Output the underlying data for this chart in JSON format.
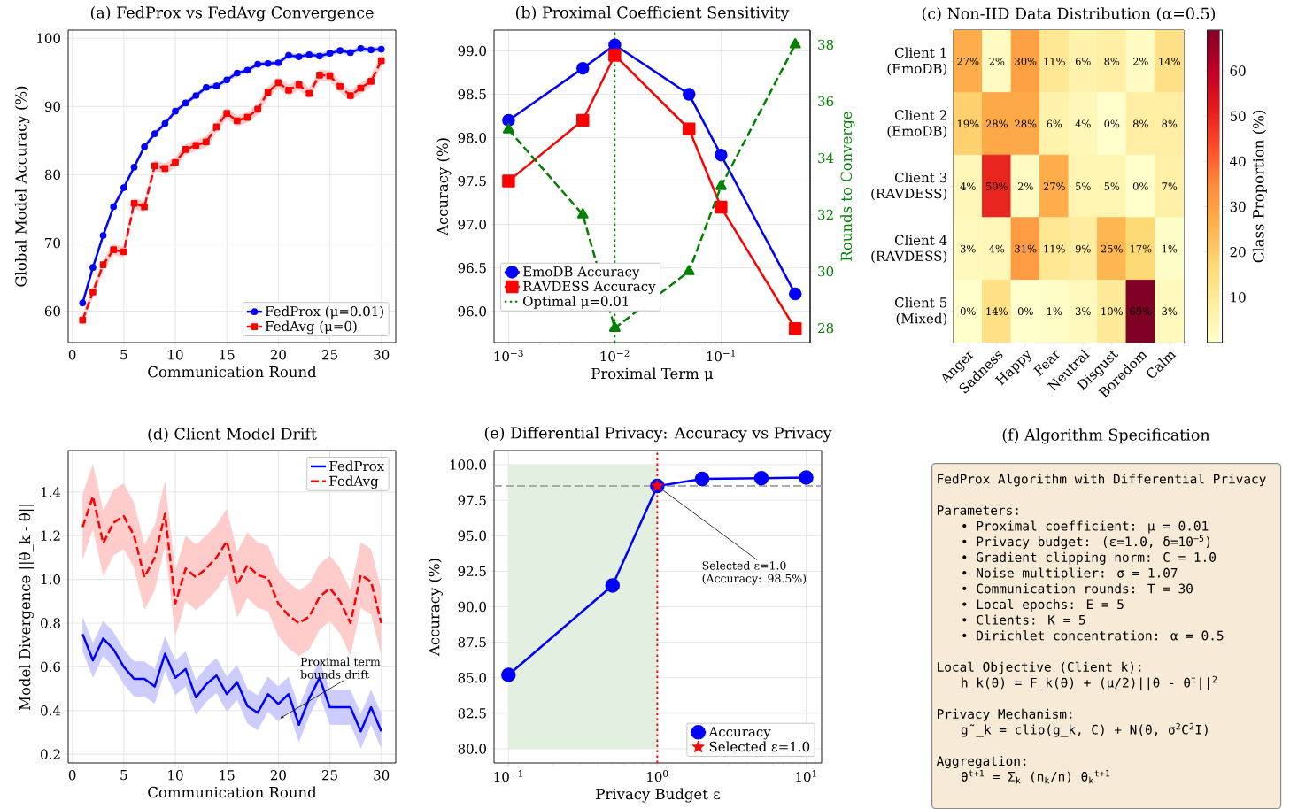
{
  "chart_data": [
    {
      "type": "line",
      "title": "(a) FedProx vs FedAvg Convergence",
      "xlabel": "Communication Round",
      "ylabel": "Global Model Accuracy (%)",
      "x": [
        1,
        2,
        3,
        4,
        5,
        6,
        7,
        8,
        9,
        10,
        11,
        12,
        13,
        14,
        15,
        16,
        17,
        18,
        19,
        20,
        21,
        22,
        23,
        24,
        25,
        26,
        27,
        28,
        29,
        30
      ],
      "xlim": [
        -0.4,
        31.4
      ],
      "ylim": [
        55.4,
        101.2
      ],
      "xticks": [
        0,
        5,
        10,
        15,
        20,
        25,
        30
      ],
      "yticks": [
        60,
        70,
        80,
        90,
        100
      ],
      "grid": true,
      "legend": "bottom right",
      "series": [
        {
          "name": "FedProx (μ=0.01)",
          "color": "#0000ff",
          "marker": "circle",
          "line_style": "solid",
          "values": [
            61.2,
            66.4,
            71.1,
            75.3,
            78.1,
            81.1,
            84.1,
            86.0,
            87.5,
            89.3,
            90.5,
            91.6,
            92.8,
            93.0,
            93.9,
            94.9,
            95.3,
            96.2,
            96.3,
            96.4,
            97.5,
            97.3,
            97.6,
            97.4,
            97.8,
            98.2,
            97.9,
            98.5,
            98.3,
            98.4
          ],
          "lower": [
            60.8,
            66.0,
            70.7,
            74.9,
            77.7,
            80.7,
            83.7,
            85.6,
            87.1,
            88.9,
            90.1,
            91.2,
            92.4,
            92.6,
            93.5,
            94.5,
            94.9,
            95.8,
            95.9,
            96.0,
            97.1,
            96.9,
            97.2,
            97.0,
            97.4,
            97.8,
            97.5,
            98.1,
            97.9,
            98.0
          ],
          "upper": [
            61.6,
            66.8,
            71.5,
            75.7,
            78.5,
            81.5,
            84.5,
            86.4,
            87.9,
            89.7,
            90.9,
            92.0,
            93.2,
            93.4,
            94.3,
            95.3,
            95.7,
            96.6,
            96.7,
            96.8,
            97.9,
            97.7,
            98.0,
            97.8,
            98.2,
            98.6,
            98.3,
            98.9,
            98.7,
            98.8
          ]
        },
        {
          "name": "FedAvg (μ=0)",
          "color": "#ff0000",
          "marker": "square",
          "line_style": "dashed",
          "values": [
            58.7,
            62.8,
            66.8,
            69.0,
            68.7,
            75.8,
            75.3,
            81.3,
            80.9,
            81.8,
            83.7,
            84.3,
            84.8,
            87.0,
            89.0,
            87.9,
            88.4,
            89.6,
            92.1,
            93.5,
            92.4,
            93.2,
            91.9,
            94.6,
            94.5,
            92.9,
            91.6,
            92.7,
            93.7,
            96.7
          ],
          "lower": [
            57.9,
            62.0,
            66.0,
            68.2,
            67.9,
            75.0,
            74.5,
            80.5,
            80.1,
            81.0,
            82.9,
            83.5,
            84.0,
            86.2,
            88.2,
            87.1,
            87.6,
            88.8,
            91.3,
            92.7,
            91.6,
            92.4,
            91.1,
            93.8,
            93.7,
            92.1,
            90.8,
            91.9,
            92.9,
            95.9
          ],
          "upper": [
            59.5,
            63.6,
            67.6,
            69.8,
            69.5,
            76.6,
            76.1,
            82.1,
            81.7,
            82.6,
            84.5,
            85.1,
            85.6,
            87.8,
            89.8,
            88.7,
            89.2,
            90.4,
            92.9,
            94.3,
            93.2,
            94.0,
            92.7,
            95.4,
            95.3,
            93.7,
            92.4,
            93.5,
            94.5,
            97.5
          ]
        }
      ]
    },
    {
      "type": "line",
      "title": "(b) Proximal Coefficient Sensitivity",
      "xlabel": "Proximal Term μ",
      "ylabel": "Accuracy (%)",
      "y2label": "Rounds to Converge",
      "log": "x",
      "x": [
        0.001,
        0.005,
        0.01,
        0.05,
        0.1,
        0.5
      ],
      "xlim": [
        0.00073,
        0.69
      ],
      "ylim": [
        95.64,
        99.24
      ],
      "y2lim": [
        27.49,
        38.51
      ],
      "xticks": [
        {
          "value": 0.001,
          "label": "10$^{−3}$"
        },
        {
          "value": 0.01,
          "label": "10$^{−2}$"
        },
        {
          "value": 0.1,
          "label": "10$^{−1}$"
        }
      ],
      "yticks": [
        {
          "value": 96,
          "label": "96.0"
        },
        96.5,
        {
          "value": 97,
          "label": "97.0"
        },
        97.5,
        {
          "value": 98,
          "label": "98.0"
        },
        98.5,
        {
          "value": 99,
          "label": "99.0"
        }
      ],
      "y2ticks": [
        28,
        30,
        32,
        34,
        36,
        38
      ],
      "grid": true,
      "legend": "bottom left",
      "ref_lines": [
        {
          "axis": "x",
          "value": 0.01,
          "label": "Optimal μ=0.01",
          "color": "#008000",
          "line_style": "dotted"
        }
      ],
      "series": [
        {
          "name": "EmoDB Accuracy",
          "color": "#0000ff",
          "marker": "circle",
          "line_style": "solid",
          "values": [
            98.2,
            98.8,
            99.07,
            98.5,
            97.8,
            96.2
          ]
        },
        {
          "name": "RAVDESS Accuracy",
          "color": "#ff0000",
          "marker": "square",
          "line_style": "solid",
          "values": [
            97.5,
            98.2,
            98.95,
            98.1,
            97.2,
            95.8
          ]
        },
        {
          "color": "#008000",
          "marker": "triangle",
          "line_style": "dashed",
          "axis": "y2",
          "values": [
            35,
            32,
            28,
            30,
            33,
            38
          ]
        }
      ]
    },
    {
      "type": "heatmap",
      "title": "(c) Non-IID Data Distribution (α=0.5)",
      "clabel": "Class Proportion (%)",
      "categories": [
        "Anger",
        "Sadness",
        "Happy",
        "Fear",
        "Neutral",
        "Disgust",
        "Boredom",
        "Calm"
      ],
      "y_categories": [
        "Client 1 (EmoDB)",
        "Client 2 (EmoDB)",
        "Client 3 (RAVDESS)",
        "Client 4 (RAVDESS)",
        "Client 5 (Mixed)"
      ],
      "clim": [
        0,
        69
      ],
      "cticks": [
        10,
        20,
        30,
        40,
        50,
        60
      ],
      "cells": [
        [
          27,
          2,
          30,
          11,
          6,
          8,
          2,
          14
        ],
        [
          19,
          28,
          28,
          6,
          4,
          0,
          8,
          8
        ],
        [
          4,
          50,
          2,
          27,
          5,
          5,
          0,
          7
        ],
        [
          3,
          4,
          31,
          11,
          9,
          25,
          17,
          1
        ],
        [
          0,
          14,
          0,
          1,
          3,
          10,
          69,
          3
        ]
      ],
      "cell_labels": [
        [
          "27%",
          "2%",
          "30%",
          "11%",
          "6%",
          "8%",
          "2%",
          "14%"
        ],
        [
          "19%",
          "28%",
          "28%",
          "6%",
          "4%",
          "0%",
          "8%",
          "8%"
        ],
        [
          "4%",
          "50%",
          "2%",
          "27%",
          "5%",
          "5%",
          "0%",
          "7%"
        ],
        [
          "3%",
          "4%",
          "31%",
          "11%",
          "9%",
          "25%",
          "17%",
          "1%"
        ],
        [
          "0%",
          "14%",
          "0%",
          "1%",
          "3%",
          "10%",
          "69%",
          "3%"
        ]
      ]
    },
    {
      "type": "line",
      "title": "(d) Client Model Drift",
      "xlabel": "Communication Round",
      "ylabel": "Model Divergence ||θ_k - θ||",
      "x": [
        1,
        2,
        3,
        4,
        5,
        6,
        7,
        8,
        9,
        10,
        11,
        12,
        13,
        14,
        15,
        16,
        17,
        18,
        19,
        20,
        21,
        22,
        23,
        24,
        25,
        26,
        27,
        28,
        29,
        30
      ],
      "xlim": [
        -0.4,
        31.4
      ],
      "ylim": [
        0.16,
        1.59
      ],
      "xticks": [
        0,
        5,
        10,
        15,
        20,
        25,
        30
      ],
      "yticks": [
        0.2,
        0.4,
        0.6,
        0.8,
        {
          "value": 1,
          "label": "1.0"
        },
        1.2,
        1.4
      ],
      "grid": true,
      "legend": "top right",
      "annotations": [
        {
          "text": "Proximal term bounds drift",
          "x": 20.2,
          "y": 0.365
        }
      ],
      "series": [
        {
          "name": "FedProx",
          "color": "#0000ff",
          "line_style": "solid",
          "values": [
            0.75,
            0.63,
            0.73,
            0.68,
            0.6,
            0.545,
            0.545,
            0.51,
            0.66,
            0.55,
            0.59,
            0.46,
            0.52,
            0.56,
            0.475,
            0.53,
            0.42,
            0.39,
            0.475,
            0.43,
            0.475,
            0.335,
            0.455,
            0.55,
            0.415,
            0.415,
            0.415,
            0.305,
            0.415,
            0.305
          ],
          "lower": [
            0.67,
            0.55,
            0.65,
            0.6,
            0.52,
            0.465,
            0.465,
            0.43,
            0.58,
            0.47,
            0.51,
            0.38,
            0.44,
            0.48,
            0.395,
            0.45,
            0.34,
            0.31,
            0.395,
            0.35,
            0.395,
            0.255,
            0.375,
            0.47,
            0.335,
            0.335,
            0.335,
            0.225,
            0.335,
            0.225
          ],
          "upper": [
            0.83,
            0.71,
            0.81,
            0.76,
            0.68,
            0.625,
            0.625,
            0.59,
            0.74,
            0.63,
            0.67,
            0.54,
            0.6,
            0.64,
            0.555,
            0.61,
            0.5,
            0.47,
            0.555,
            0.51,
            0.555,
            0.415,
            0.535,
            0.63,
            0.495,
            0.495,
            0.495,
            0.385,
            0.495,
            0.385
          ]
        },
        {
          "name": "FedAvg",
          "color": "#ff0000",
          "line_style": "dashed",
          "values": [
            1.24,
            1.38,
            1.165,
            1.26,
            1.29,
            1.2,
            1.01,
            1.1,
            1.3,
            0.89,
            1.05,
            1.01,
            1.05,
            1.1,
            1.175,
            0.975,
            1.065,
            1.02,
            1.005,
            0.89,
            0.835,
            0.8,
            0.83,
            0.92,
            0.96,
            0.9,
            0.8,
            1.02,
            0.99,
            0.8
          ],
          "lower": [
            1.09,
            1.23,
            1.015,
            1.11,
            1.14,
            1.05,
            0.86,
            0.95,
            1.15,
            0.74,
            0.9,
            0.86,
            0.9,
            0.95,
            1.025,
            0.825,
            0.915,
            0.87,
            0.855,
            0.74,
            0.685,
            0.65,
            0.68,
            0.77,
            0.81,
            0.75,
            0.65,
            0.87,
            0.84,
            0.65
          ],
          "upper": [
            1.39,
            1.53,
            1.315,
            1.41,
            1.44,
            1.35,
            1.16,
            1.25,
            1.45,
            1.04,
            1.2,
            1.16,
            1.2,
            1.25,
            1.325,
            1.125,
            1.215,
            1.17,
            1.155,
            1.04,
            0.985,
            0.95,
            0.98,
            1.07,
            1.11,
            1.05,
            0.95,
            1.17,
            1.14,
            0.95
          ]
        }
      ]
    },
    {
      "type": "line",
      "title": "(e) Differential Privacy: Accuracy vs Privacy",
      "xlabel": "Privacy Budget ε",
      "ylabel": "Accuracy (%)",
      "log": "x",
      "xlim": [
        0.08,
        12.7
      ],
      "ylim": [
        79.0,
        101.0
      ],
      "xticks": [
        {
          "value": 0.1,
          "label": "10$^{−1}$"
        },
        {
          "value": 1,
          "label": "10$^{0}$"
        },
        {
          "value": 10,
          "label": "10$^{1}$"
        }
      ],
      "yticks": [
        {
          "value": 80,
          "label": "80.0"
        },
        82.5,
        {
          "value": 85,
          "label": "85.0"
        },
        87.5,
        {
          "value": 90,
          "label": "90.0"
        },
        92.5,
        {
          "value": 95,
          "label": "95.0"
        },
        97.5,
        {
          "value": 100,
          "label": "100.0"
        }
      ],
      "grid": true,
      "legend": "bottom right",
      "ref_lines": [
        {
          "axis": "x",
          "value": 1,
          "color": "#ff0000",
          "line_style": "dotted"
        },
        {
          "axis": "y",
          "value": 98.5,
          "color": "#aaaaaa",
          "line_style": "dashed"
        }
      ],
      "bands": [
        {
          "axis": "x",
          "from": 0.1,
          "to": 1,
          "color": "#e3efe0"
        }
      ],
      "annotations": [
        {
          "text": "Selected ε=1.0 (Accuracy: 98.5%)",
          "x": 1,
          "y": 98.5
        }
      ],
      "series": [
        {
          "name": "Accuracy",
          "color": "#0000ff",
          "marker": "circle",
          "line_style": "solid",
          "x": [
            0.1,
            0.5,
            1,
            2,
            5,
            10
          ],
          "values": [
            85.2,
            91.5,
            98.5,
            99.0,
            99.05,
            99.1
          ]
        },
        {
          "name": "Selected ε=1.0",
          "type": "scatter",
          "color": "#ff0000",
          "marker": "star",
          "x": [
            1
          ],
          "values": [
            98.5
          ]
        }
      ]
    },
    {
      "type": "other",
      "title": "(f) Algorithm Specification",
      "color": "#f7ebd7",
      "annotations": [
        [
          "FedProx Algorithm with Differential Privacy"
        ],
        [
          "Parameters:",
          "• Proximal coefficient: μ = 0.01",
          "• Privacy budget: (ε=1.0, δ=10$^{−5}$)",
          "• Gradient clipping norm: C = 1.0",
          "• Noise multiplier: σ = 1.07",
          "• Communication rounds: T = 30",
          "• Local epochs: E = 5",
          "• Clients: K = 5",
          "• Dirichlet concentration: α = 0.5"
        ],
        [
          "Local Objective (Client k):",
          "h_k(θ) = F_k(θ) + (μ/2)||θ - θ$^{t}$||$^{2}$"
        ],
        [
          "Privacy Mechanism:",
          "g˜_k = clip(g_k, C) + N(0, σ$^{2}$C$^{2}$I)"
        ],
        [
          "Aggregation:",
          "θ$^{t+1}$ = Σ$_{k}$ (n$_{k}$/n) θ$_{k}$$^{t+1}$"
        ]
      ]
    }
  ]
}
